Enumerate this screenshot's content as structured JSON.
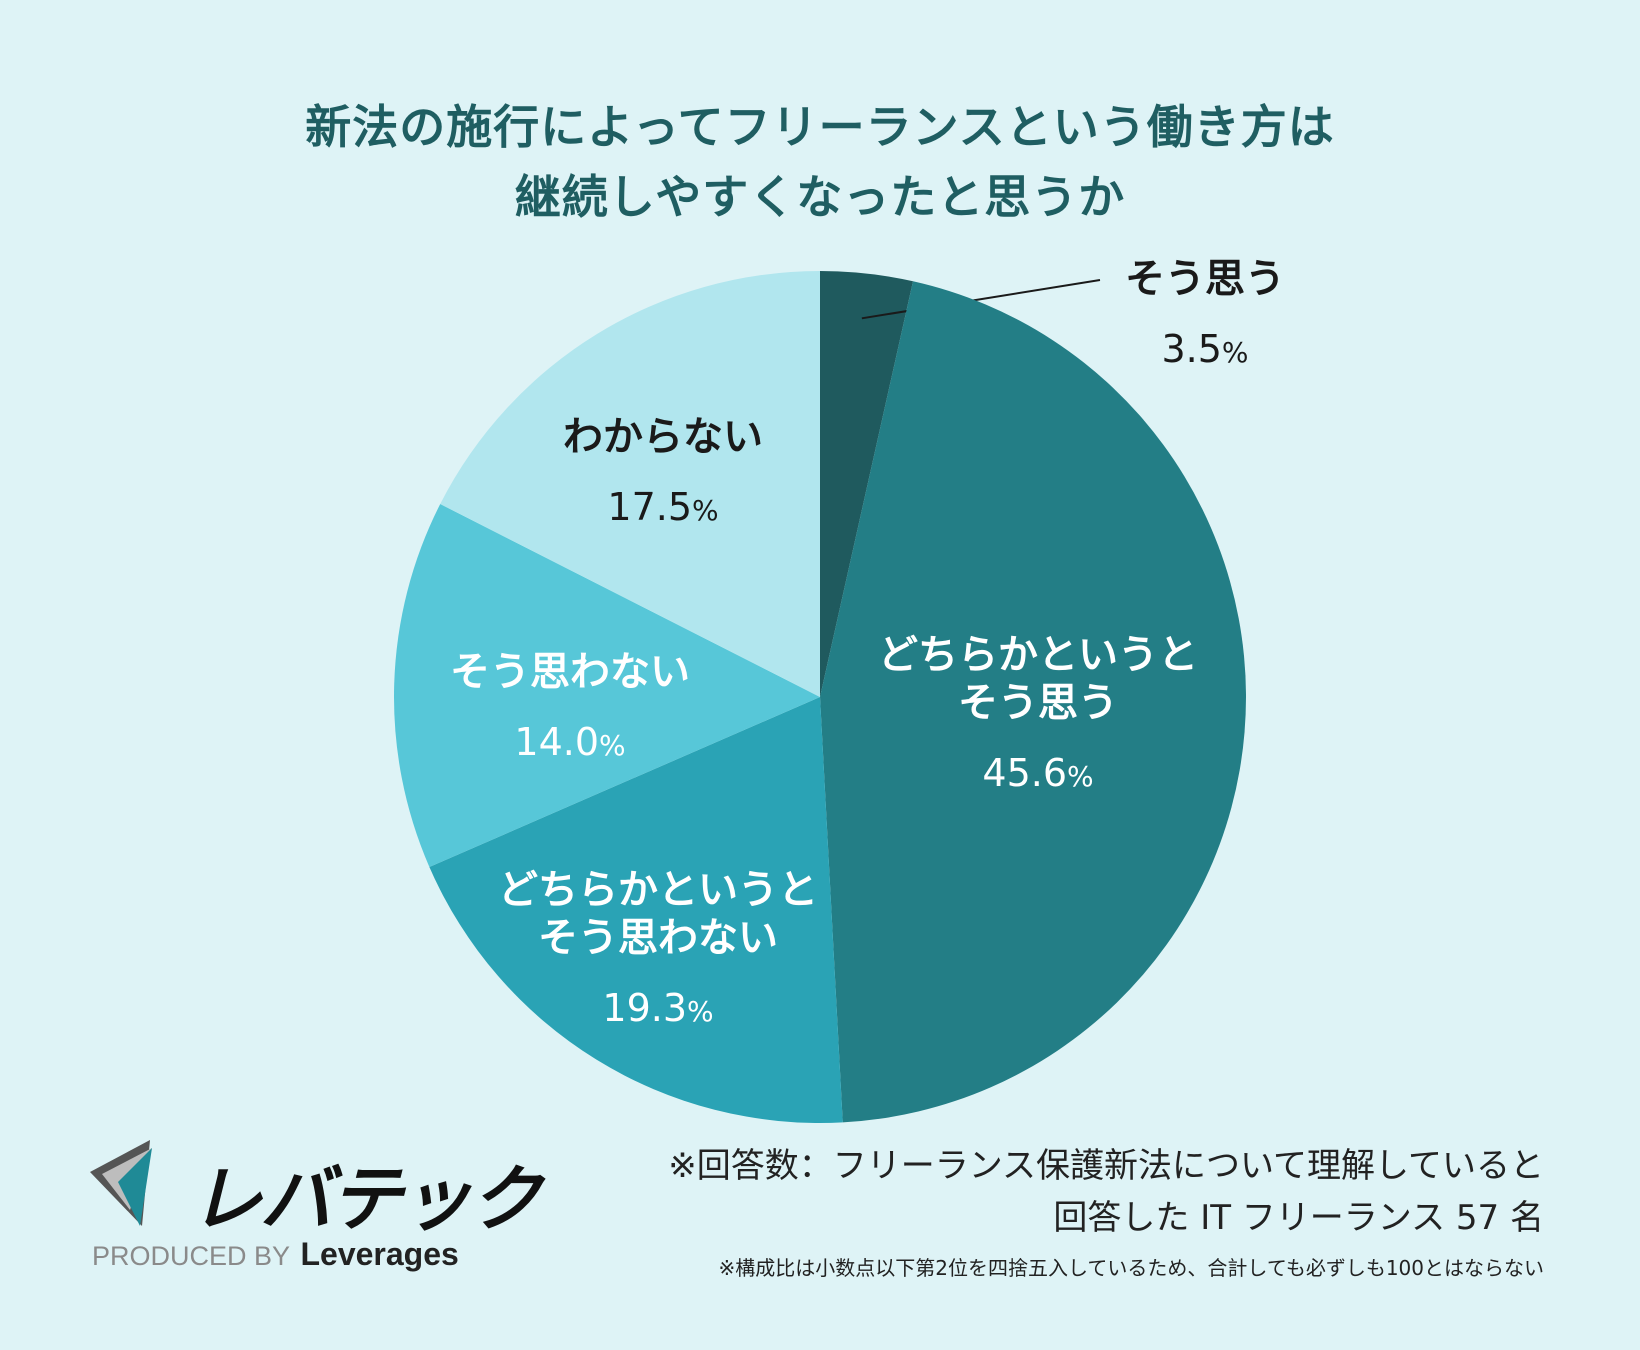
{
  "title": {
    "line1": "新法の施行によってフリーランスという働き方は",
    "line2": "継続しやすくなったと思うか"
  },
  "chart_data": {
    "type": "pie",
    "start_angle_deg": 0,
    "direction": "clockwise",
    "slices": [
      {
        "label": "そう思う",
        "value": 3.5,
        "display": "3.5",
        "color": "#1f5a5e",
        "label_color": "#1a1a1a",
        "callout": true
      },
      {
        "label": "どちらかというとそう思う",
        "value": 45.6,
        "display": "45.6",
        "color": "#237e86",
        "label_color": "#ffffff"
      },
      {
        "label": "どちらかというとそう思わない",
        "value": 19.3,
        "display": "19.3",
        "color": "#2aa3b5",
        "label_color": "#ffffff"
      },
      {
        "label": "そう思わない",
        "value": 14.0,
        "display": "14.0",
        "color": "#57c7d8",
        "label_color": "#ffffff"
      },
      {
        "label": "わからない",
        "value": 17.5,
        "display": "17.5",
        "color": "#b1e6ee",
        "label_color": "#1a1a1a"
      }
    ],
    "unit": "%"
  },
  "note": {
    "line1": "※回答数：フリーランス保護新法について理解していると",
    "line2": "回答した IT フリーランス 57 名",
    "small": "※構成比は小数点以下第2位を四捨五入しているため、合計しても必ずしも100とはならない"
  },
  "logo": {
    "wordmark": "レバテック",
    "produced_by": "PRODUCED BY",
    "company": "Leverages"
  },
  "colors": {
    "background": "#def3f6",
    "title": "#1f5e62"
  }
}
